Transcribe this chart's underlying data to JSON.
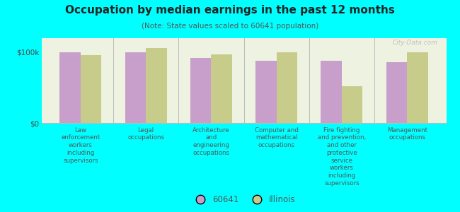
{
  "title": "Occupation by median earnings in the past 12 months",
  "subtitle": "(Note: State values scaled to 60641 population)",
  "background_color": "#00FFFF",
  "plot_bg_color": "#eef2e0",
  "categories": [
    "Law\nenforcement\nworkers\nincluding\nsupervisors",
    "Legal\noccupations",
    "Architecture\nand\nengineering\noccupations",
    "Computer and\nmathematical\noccupations",
    "Fire fighting\nand prevention,\nand other\nprotective\nservice\nworkers\nincluding\nsupervisors",
    "Management\noccupations"
  ],
  "values_60641": [
    100000,
    100000,
    92000,
    88000,
    88000,
    86000
  ],
  "values_illinois": [
    96000,
    106000,
    97000,
    100000,
    52000,
    100000
  ],
  "color_60641": "#c89eca",
  "color_illinois": "#c8cc8a",
  "ylim": [
    0,
    120000
  ],
  "ytick_labels": [
    "$0",
    "$100k"
  ],
  "legend_labels": [
    "60641",
    "Illinois"
  ],
  "bar_width": 0.32,
  "watermark": "City-Data.com"
}
